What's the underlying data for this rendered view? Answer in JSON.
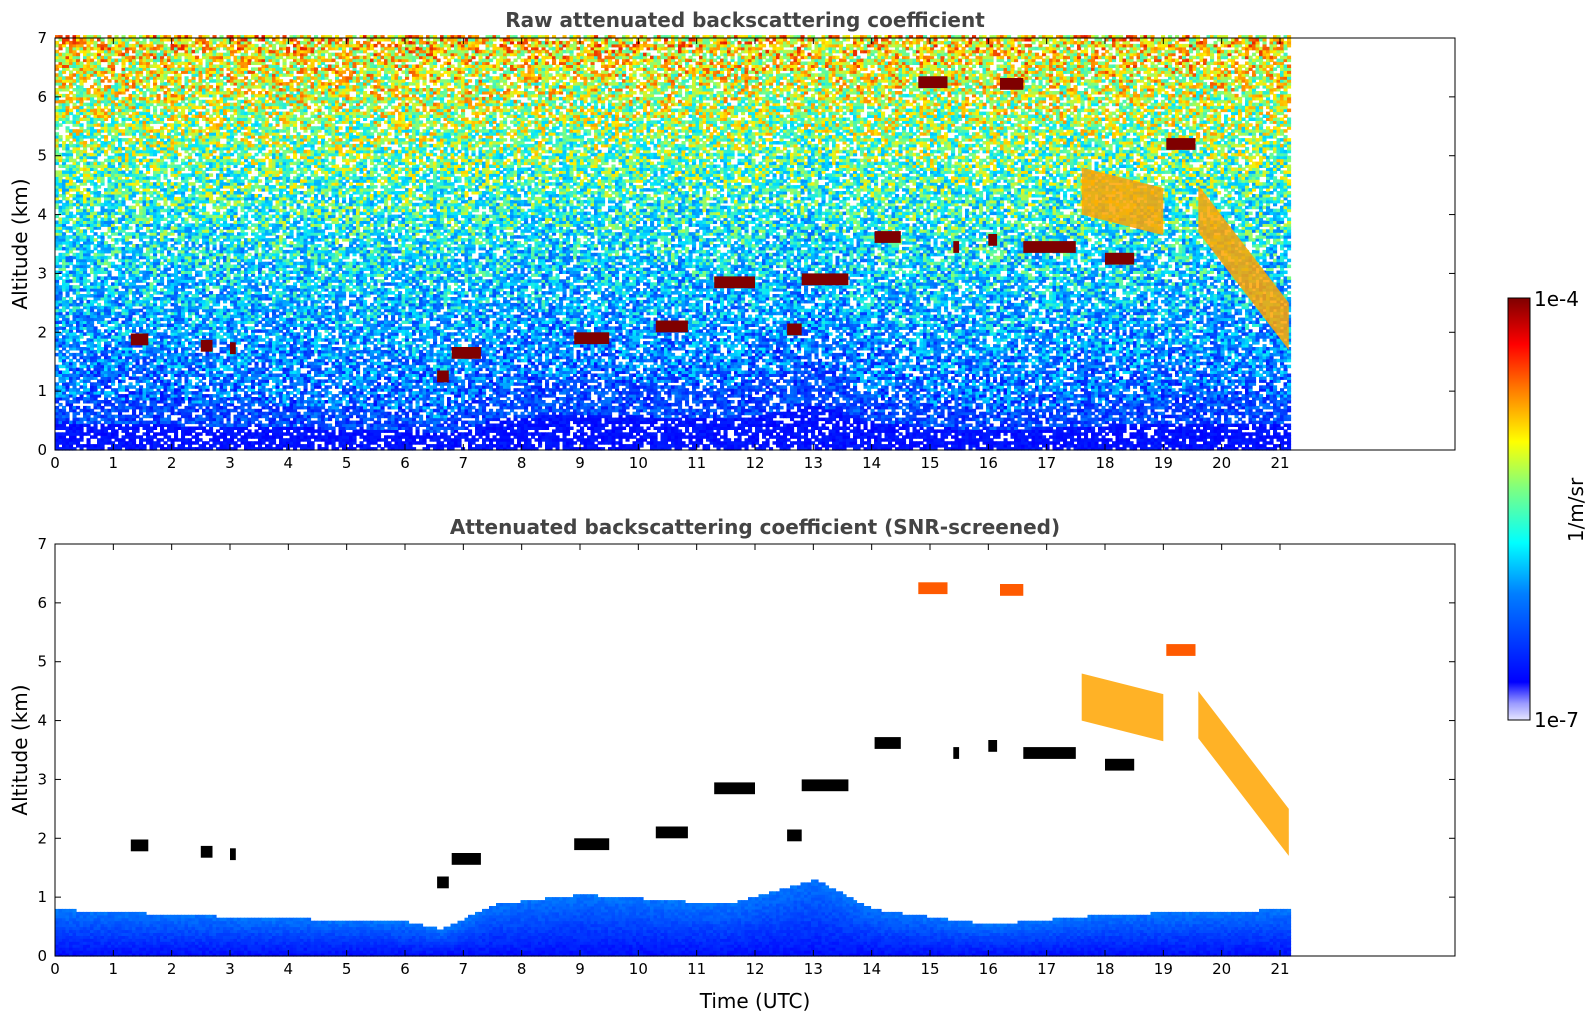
{
  "colors": {
    "jet": [
      "#00007f",
      "#0000ff",
      "#007fff",
      "#00ffff",
      "#7fff7f",
      "#ffff00",
      "#ff7f00",
      "#ff0000",
      "#7f0000"
    ],
    "cloud_dark": "#7f0000",
    "black": "#000000"
  },
  "colorbar": {
    "label": "1/m/sr",
    "min_label": "1e-7",
    "max_label": "1e-4",
    "range": [
      1e-07,
      0.0001
    ],
    "scale": "log"
  },
  "chart_data": [
    {
      "type": "heatmap",
      "title": "Raw attenuated backscattering coefficient",
      "xlabel": "",
      "ylabel": "Altitude (km)",
      "xlim": [
        0,
        24
      ],
      "ylim": [
        0,
        7
      ],
      "xticks": [
        "0",
        "1",
        "2",
        "3",
        "4",
        "5",
        "6",
        "7",
        "8",
        "9",
        "10",
        "11",
        "12",
        "13",
        "14",
        "15",
        "16",
        "17",
        "18",
        "19",
        "20",
        "21"
      ],
      "yticks": [
        "0",
        "1",
        "2",
        "3",
        "4",
        "5",
        "6",
        "7"
      ],
      "data_extent_x": [
        0,
        21.15
      ],
      "boundary_layer_top_km": [
        [
          0,
          0.9
        ],
        [
          3,
          0.75
        ],
        [
          6,
          0.65
        ],
        [
          6.6,
          0.5
        ],
        [
          7.5,
          1.0
        ],
        [
          9,
          1.2
        ],
        [
          11.5,
          1.0
        ],
        [
          13,
          1.5
        ],
        [
          14,
          0.9
        ],
        [
          16,
          0.6
        ],
        [
          18,
          0.8
        ],
        [
          21.15,
          0.9
        ]
      ],
      "cloud_layers_km": [
        {
          "x0": 1.3,
          "x1": 1.6,
          "z": 1.88
        },
        {
          "x0": 2.5,
          "x1": 2.7,
          "z": 1.77
        },
        {
          "x0": 3.0,
          "x1": 3.1,
          "z": 1.73
        },
        {
          "x0": 6.55,
          "x1": 6.75,
          "z": 1.25
        },
        {
          "x0": 6.8,
          "x1": 7.3,
          "z": 1.65
        },
        {
          "x0": 8.9,
          "x1": 9.5,
          "z": 1.9
        },
        {
          "x0": 10.3,
          "x1": 10.85,
          "z": 2.1
        },
        {
          "x0": 11.3,
          "x1": 12.0,
          "z": 2.85
        },
        {
          "x0": 12.55,
          "x1": 12.8,
          "z": 2.05
        },
        {
          "x0": 12.8,
          "x1": 13.6,
          "z": 2.9
        },
        {
          "x0": 14.05,
          "x1": 14.5,
          "z": 3.62
        },
        {
          "x0": 15.4,
          "x1": 15.5,
          "z": 3.45
        },
        {
          "x0": 16.0,
          "x1": 16.15,
          "z": 3.57
        },
        {
          "x0": 16.6,
          "x1": 17.5,
          "z": 3.45
        },
        {
          "x0": 18.0,
          "x1": 18.5,
          "z": 3.25
        },
        {
          "x0": 14.8,
          "x1": 15.3,
          "z": 6.25
        },
        {
          "x0": 16.2,
          "x1": 16.6,
          "z": 6.22
        },
        {
          "x0": 19.05,
          "x1": 19.55,
          "z": 5.2
        }
      ],
      "cirrus_bands_km": [
        {
          "x0": 17.6,
          "x1": 19.0,
          "z_top": 4.8,
          "z_bot": 3.65
        },
        {
          "x0": 19.6,
          "x1": 21.15,
          "z_top": 4.5,
          "z_bot": 1.7
        }
      ]
    },
    {
      "type": "heatmap",
      "title": "Attenuated backscattering coefficient (SNR-screened)",
      "xlabel": "Time (UTC)",
      "ylabel": "Altitude (km)",
      "xlim": [
        0,
        24
      ],
      "ylim": [
        0,
        7
      ],
      "xticks": [
        "0",
        "1",
        "2",
        "3",
        "4",
        "5",
        "6",
        "7",
        "8",
        "9",
        "10",
        "11",
        "12",
        "13",
        "14",
        "15",
        "16",
        "17",
        "18",
        "19",
        "20",
        "21"
      ],
      "yticks": [
        "0",
        "1",
        "2",
        "3",
        "4",
        "5",
        "6",
        "7"
      ],
      "data_extent_x": [
        0,
        21.15
      ]
    }
  ]
}
